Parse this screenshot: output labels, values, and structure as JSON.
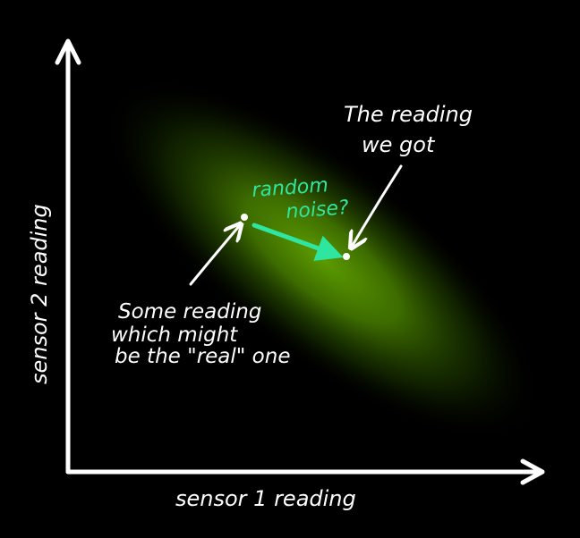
{
  "axes": {
    "x_label": "sensor 1 reading",
    "y_label": "sensor 2 reading"
  },
  "annotations": {
    "observed_label_line1": "The reading",
    "observed_label_line2": "we got",
    "noise_label_line1": "random",
    "noise_label_line2": "noise?",
    "real_label_line1": "Some reading",
    "real_label_line2": "which might",
    "real_label_line3": "be the \"real\" one"
  },
  "colors": {
    "background": "#000000",
    "ink": "#ffffff",
    "noise_arrow": "#2fe6a0",
    "density_core": "#5a9a00",
    "density_edge": "#1f4a00"
  }
}
